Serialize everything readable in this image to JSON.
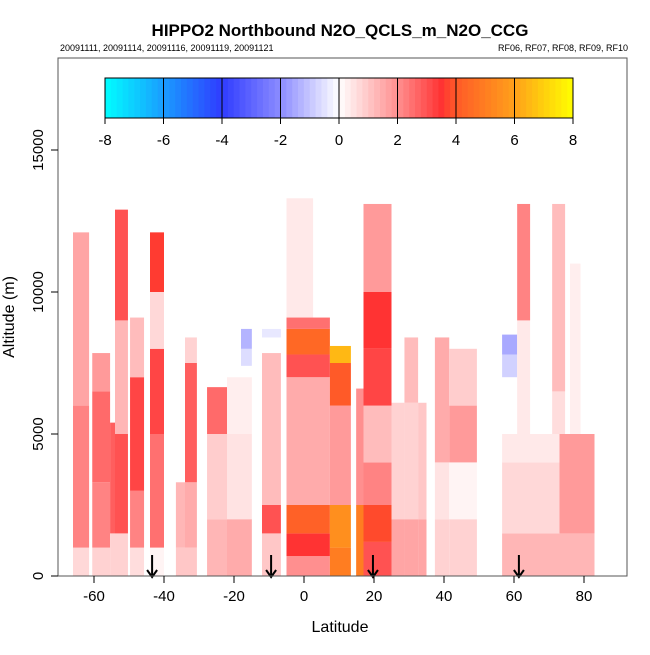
{
  "chart_data": {
    "type": "heatmap",
    "title": "HIPPO2 Northbound N2O_QCLS_m_N2O_CCG",
    "subtitle_left": "20091111, 20091114, 20091116, 20091119, 20091121",
    "subtitle_right": "RF06, RF07, RF08, RF09, RF10",
    "xlabel": "Latitude",
    "ylabel": "Altitude (m)",
    "xlim": [
      -70.6,
      92.5
    ],
    "ylim": [
      0,
      18200
    ],
    "xticks": [
      -60,
      -40,
      -20,
      0,
      20,
      40,
      60,
      80
    ],
    "xtick_labels": [
      "-60",
      "-40",
      "-20",
      "0",
      "20",
      "40",
      "60",
      "80"
    ],
    "yticks": [
      0,
      5000,
      10000,
      15000
    ],
    "ytick_labels": [
      "0",
      "5000",
      "10000",
      "15000"
    ],
    "colorbar": {
      "range": [
        -8,
        8
      ],
      "ticks": [
        -8,
        -6,
        -4,
        -2,
        0,
        2,
        4,
        6,
        8
      ],
      "tick_labels": [
        "-8",
        "-6",
        "-4",
        "-2",
        "0",
        "2",
        "4",
        "6",
        "8"
      ],
      "stops": [
        {
          "v": -8,
          "color": "#00ffff"
        },
        {
          "v": -6,
          "color": "#1a9cff"
        },
        {
          "v": -4,
          "color": "#2f3cff"
        },
        {
          "v": -2,
          "color": "#8c8cff"
        },
        {
          "v": 0,
          "color": "#ffffff"
        },
        {
          "v": 2,
          "color": "#ff8f8f"
        },
        {
          "v": 3.5,
          "color": "#ff3333"
        },
        {
          "v": 4,
          "color": "#ff5a28"
        },
        {
          "v": 6,
          "color": "#ffa01a"
        },
        {
          "v": 8,
          "color": "#ffff00"
        }
      ]
    },
    "columns": [
      {
        "lat": [
          -66,
          -61.4
        ],
        "segments": [
          [
            0,
            1000,
            0.7
          ],
          [
            1000,
            6000,
            2.2
          ],
          [
            6000,
            12100,
            1.6
          ]
        ]
      },
      {
        "lat": [
          -60.5,
          -55.4
        ],
        "segments": [
          [
            0,
            1000,
            0.8
          ],
          [
            1000,
            3300,
            2.2
          ],
          [
            3300,
            6500,
            2.6
          ],
          [
            6500,
            7850,
            1.8
          ]
        ]
      },
      {
        "lat": [
          -55.4,
          -54
        ],
        "segments": [
          [
            0,
            1500,
            0.8
          ],
          [
            1500,
            5400,
            2.8
          ]
        ]
      },
      {
        "lat": [
          -54,
          -50.3
        ],
        "segments": [
          [
            0,
            1500,
            0.8
          ],
          [
            1500,
            5000,
            3
          ],
          [
            5000,
            9000,
            1.3
          ],
          [
            9000,
            12900,
            3
          ]
        ]
      },
      {
        "lat": [
          -49.7,
          -45.7
        ],
        "segments": [
          [
            0,
            1000,
            0.6
          ],
          [
            1000,
            3000,
            2.2
          ],
          [
            3000,
            7000,
            3.2
          ],
          [
            7000,
            9100,
            1.2
          ]
        ]
      },
      {
        "lat": [
          -44,
          -40
        ],
        "segments": [
          [
            0,
            1000,
            0.2
          ],
          [
            1000,
            5000,
            2.5
          ],
          [
            5000,
            8000,
            3.2
          ],
          [
            8000,
            10000,
            0.7
          ],
          [
            10000,
            12100,
            3.6
          ]
        ]
      },
      {
        "lat": [
          -36.6,
          -34
        ],
        "segments": [
          [
            0,
            1000,
            1
          ],
          [
            1000,
            3300,
            1.3
          ]
        ]
      },
      {
        "lat": [
          -34,
          -30.6
        ],
        "segments": [
          [
            0,
            1000,
            1
          ],
          [
            1000,
            3300,
            1.5
          ],
          [
            3300,
            7500,
            2.8
          ],
          [
            7500,
            8400,
            0.8
          ]
        ]
      },
      {
        "lat": [
          -27.7,
          -22
        ],
        "segments": [
          [
            0,
            2000,
            1.3
          ],
          [
            2000,
            5000,
            0.9
          ],
          [
            5000,
            6650,
            2.6
          ]
        ]
      },
      {
        "lat": [
          -22,
          -14.9
        ],
        "segments": [
          [
            0,
            2000,
            1.5
          ],
          [
            2000,
            5000,
            0.5
          ],
          [
            5000,
            7000,
            0.3
          ]
        ]
      },
      {
        "lat": [
          -18,
          -14.9
        ],
        "segments": [
          [
            7400,
            8000,
            -0.6
          ],
          [
            8000,
            8700,
            -1.3
          ]
        ]
      },
      {
        "lat": [
          -12,
          -6.6
        ],
        "segments": [
          [
            0,
            1500,
            1
          ],
          [
            1500,
            2500,
            3
          ],
          [
            2500,
            7850,
            1.2
          ],
          [
            8400,
            8700,
            -0.4
          ]
        ]
      },
      {
        "lat": [
          -5,
          2.6
        ],
        "segments": [
          [
            9100,
            13300,
            0.4
          ]
        ]
      },
      {
        "lat": [
          -5,
          7.4
        ],
        "segments": [
          [
            0,
            700,
            2
          ],
          [
            700,
            1500,
            3.5
          ],
          [
            1500,
            2500,
            4.2
          ],
          [
            2500,
            7000,
            1.5
          ],
          [
            7000,
            7800,
            3
          ],
          [
            7800,
            8700,
            4.4
          ],
          [
            8700,
            9100,
            2.5
          ]
        ]
      },
      {
        "lat": [
          7.4,
          13.4
        ],
        "segments": [
          [
            0,
            1000,
            5
          ],
          [
            1000,
            2500,
            5.5
          ],
          [
            2500,
            6000,
            1.8
          ],
          [
            6000,
            7500,
            4
          ],
          [
            7500,
            8100,
            6.5
          ]
        ]
      },
      {
        "lat": [
          14.9,
          17
        ],
        "segments": [
          [
            0,
            2500,
            5
          ],
          [
            2500,
            6600,
            2
          ]
        ]
      },
      {
        "lat": [
          17,
          25
        ],
        "segments": [
          [
            0,
            1200,
            3
          ],
          [
            1200,
            2500,
            3.8
          ],
          [
            2500,
            4000,
            2.2
          ],
          [
            4000,
            6000,
            1.2
          ],
          [
            6000,
            8000,
            3.2
          ],
          [
            8000,
            10000,
            3.5
          ],
          [
            10000,
            13100,
            1.8
          ]
        ]
      },
      {
        "lat": [
          25,
          28.7
        ],
        "segments": [
          [
            0,
            2000,
            1.6
          ],
          [
            2000,
            6100,
            0.8
          ]
        ]
      },
      {
        "lat": [
          28.7,
          32.6
        ],
        "segments": [
          [
            0,
            2000,
            1.6
          ],
          [
            2000,
            6100,
            0.8
          ],
          [
            6100,
            8400,
            1.2
          ]
        ]
      },
      {
        "lat": [
          32.6,
          35
        ],
        "segments": [
          [
            0,
            2000,
            1.6
          ],
          [
            2000,
            6100,
            1
          ]
        ]
      },
      {
        "lat": [
          37.4,
          41.5
        ],
        "segments": [
          [
            0,
            2000,
            0.8
          ],
          [
            2000,
            4000,
            0.5
          ],
          [
            4000,
            8400,
            1.5
          ]
        ]
      },
      {
        "lat": [
          41.5,
          49.4
        ],
        "segments": [
          [
            0,
            2000,
            0.8
          ],
          [
            2000,
            4000,
            0.2
          ],
          [
            4000,
            6000,
            1.8
          ],
          [
            6000,
            8000,
            0.9
          ]
        ]
      },
      {
        "lat": [
          56.6,
          83
        ],
        "segments": [
          [
            0,
            1500,
            1.3
          ],
          [
            1500,
            4000,
            0.7
          ],
          [
            4000,
            5000,
            0.4
          ]
        ]
      },
      {
        "lat": [
          73,
          83
        ],
        "segments": [
          [
            1500,
            5000,
            1.8
          ]
        ]
      },
      {
        "lat": [
          56.6,
          60.9
        ],
        "segments": [
          [
            7000,
            7800,
            -0.8
          ],
          [
            7800,
            8500,
            -1.5
          ]
        ]
      },
      {
        "lat": [
          60.9,
          64.6
        ],
        "segments": [
          [
            5000,
            9000,
            0.4
          ],
          [
            9000,
            13100,
            2.2
          ]
        ]
      },
      {
        "lat": [
          70.9,
          74.6
        ],
        "segments": [
          [
            5000,
            6500,
            0.6
          ],
          [
            6500,
            13100,
            1.2
          ]
        ]
      },
      {
        "lat": [
          76,
          79
        ],
        "segments": [
          [
            5000,
            11000,
            0.3
          ]
        ]
      }
    ],
    "flight_markers_lat": [
      -43.4,
      -9.4,
      19.7,
      61.4
    ]
  }
}
